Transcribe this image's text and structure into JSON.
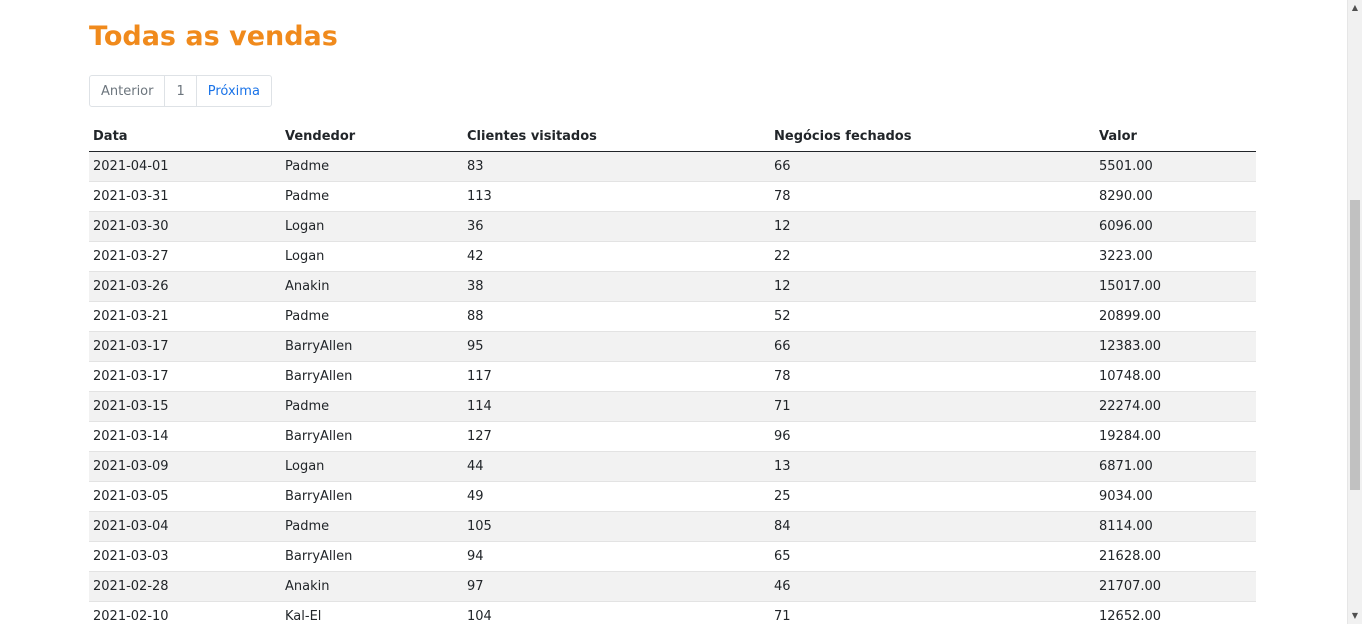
{
  "page": {
    "title": "Todas as vendas"
  },
  "pagination": {
    "previous": "Anterior",
    "current": "1",
    "next": "Próxima"
  },
  "table": {
    "headers": {
      "data": "Data",
      "vendedor": "Vendedor",
      "clientes": "Clientes visitados",
      "negocios": "Negócios fechados",
      "valor": "Valor"
    },
    "rows": [
      {
        "data": "2021-04-01",
        "vendedor": "Padme",
        "clientes": "83",
        "negocios": "66",
        "valor": "5501.00"
      },
      {
        "data": "2021-03-31",
        "vendedor": "Padme",
        "clientes": "113",
        "negocios": "78",
        "valor": "8290.00"
      },
      {
        "data": "2021-03-30",
        "vendedor": "Logan",
        "clientes": "36",
        "negocios": "12",
        "valor": "6096.00"
      },
      {
        "data": "2021-03-27",
        "vendedor": "Logan",
        "clientes": "42",
        "negocios": "22",
        "valor": "3223.00"
      },
      {
        "data": "2021-03-26",
        "vendedor": "Anakin",
        "clientes": "38",
        "negocios": "12",
        "valor": "15017.00"
      },
      {
        "data": "2021-03-21",
        "vendedor": "Padme",
        "clientes": "88",
        "negocios": "52",
        "valor": "20899.00"
      },
      {
        "data": "2021-03-17",
        "vendedor": "BarryAllen",
        "clientes": "95",
        "negocios": "66",
        "valor": "12383.00"
      },
      {
        "data": "2021-03-17",
        "vendedor": "BarryAllen",
        "clientes": "117",
        "negocios": "78",
        "valor": "10748.00"
      },
      {
        "data": "2021-03-15",
        "vendedor": "Padme",
        "clientes": "114",
        "negocios": "71",
        "valor": "22274.00"
      },
      {
        "data": "2021-03-14",
        "vendedor": "BarryAllen",
        "clientes": "127",
        "negocios": "96",
        "valor": "19284.00"
      },
      {
        "data": "2021-03-09",
        "vendedor": "Logan",
        "clientes": "44",
        "negocios": "13",
        "valor": "6871.00"
      },
      {
        "data": "2021-03-05",
        "vendedor": "BarryAllen",
        "clientes": "49",
        "negocios": "25",
        "valor": "9034.00"
      },
      {
        "data": "2021-03-04",
        "vendedor": "Padme",
        "clientes": "105",
        "negocios": "84",
        "valor": "8114.00"
      },
      {
        "data": "2021-03-03",
        "vendedor": "BarryAllen",
        "clientes": "94",
        "negocios": "65",
        "valor": "21628.00"
      },
      {
        "data": "2021-02-28",
        "vendedor": "Anakin",
        "clientes": "97",
        "negocios": "46",
        "valor": "21707.00"
      },
      {
        "data": "2021-02-10",
        "vendedor": "Kal-El",
        "clientes": "104",
        "negocios": "71",
        "valor": "12652.00"
      }
    ]
  },
  "colors": {
    "title": "#f08a1c",
    "link": "#1a73e8",
    "stripe": "#f2f2f2"
  },
  "icons": {
    "scroll_up": "triangle-up-icon",
    "scroll_down": "triangle-down-icon"
  }
}
